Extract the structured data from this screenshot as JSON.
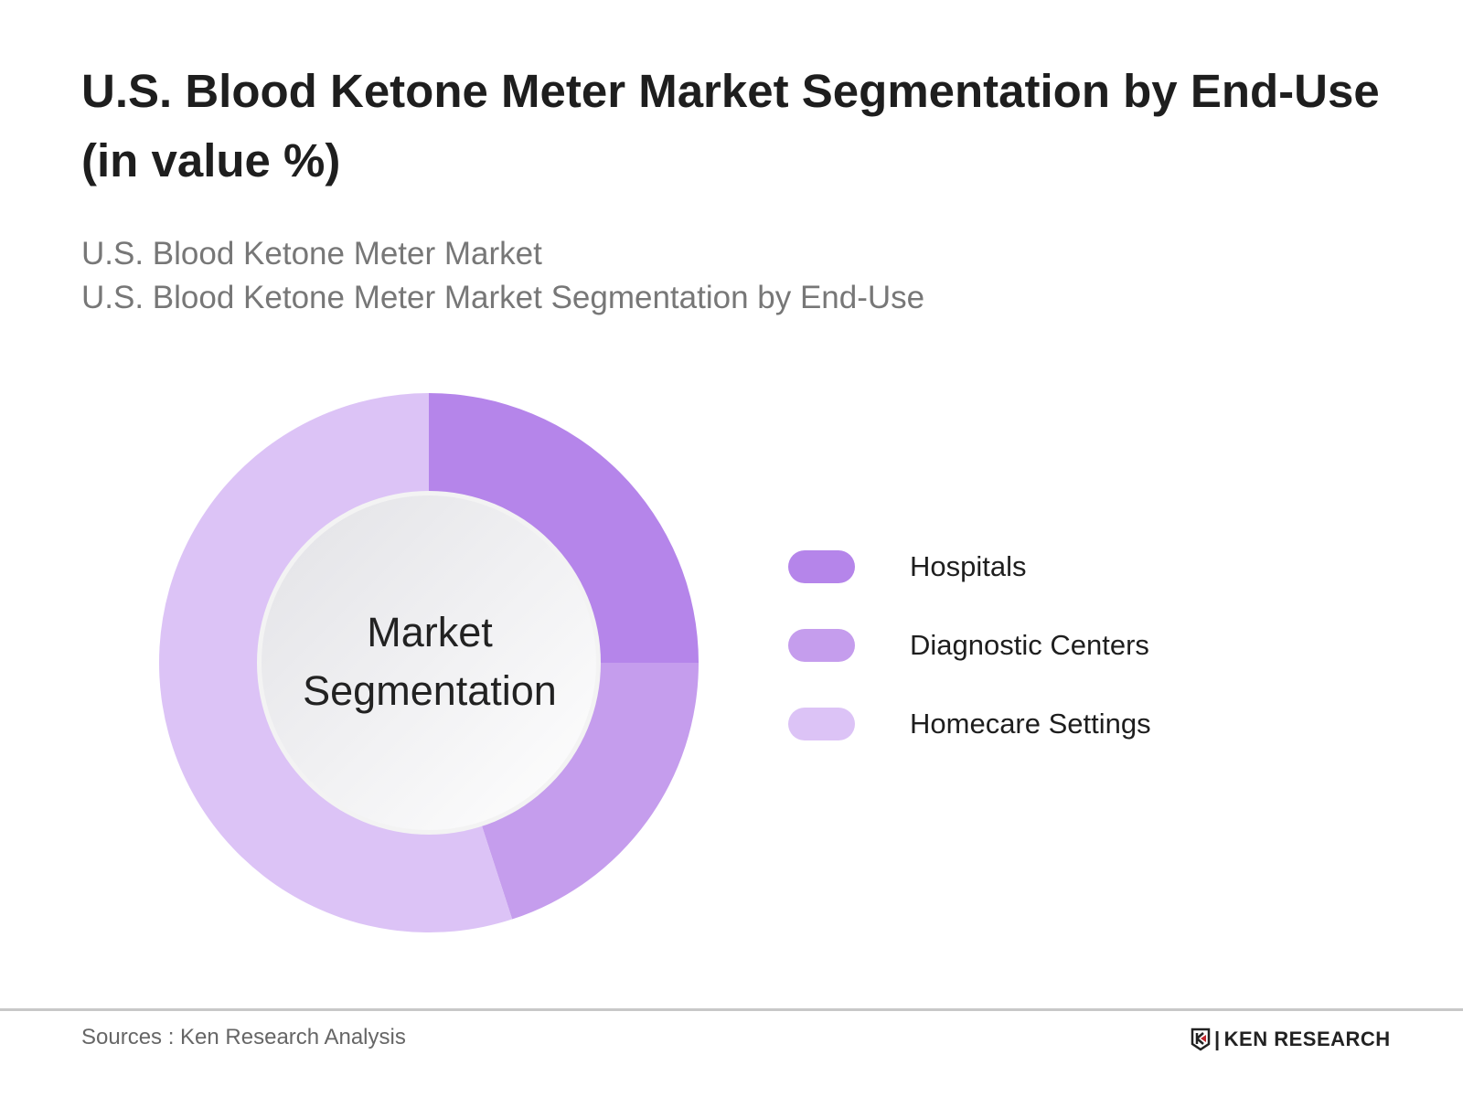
{
  "title": "U.S. Blood Ketone Meter Market Segmentation by End-Use (in value %)",
  "subtitle_1": "U.S. Blood Ketone Meter Market",
  "subtitle_2": "U.S. Blood Ketone Meter Market Segmentation by End-Use",
  "chart_data": {
    "type": "pie",
    "variant": "donut",
    "center_label": [
      "Market",
      "Segmentation"
    ],
    "categories": [
      "Hospitals",
      "Diagnostic Centers",
      "Homecare Settings"
    ],
    "values": [
      25,
      20,
      55
    ],
    "colors": [
      "#b585ea",
      "#c59ded",
      "#dcc3f6"
    ],
    "legend_position": "right"
  },
  "footer": {
    "sources": "Sources : Ken Research Analysis",
    "logo_text": "KEN RESEARCH"
  }
}
